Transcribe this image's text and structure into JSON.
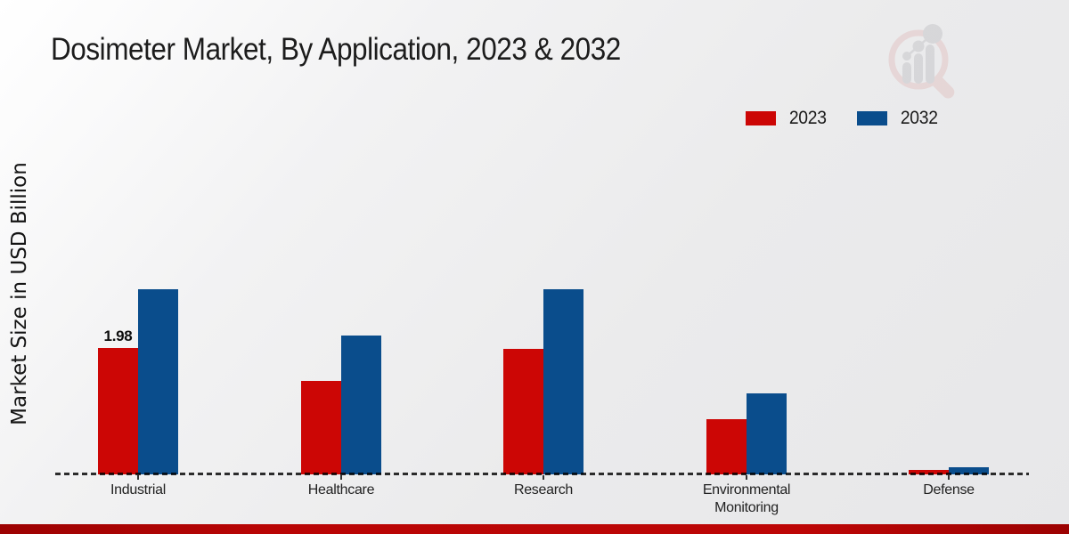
{
  "title": "Dosimeter Market, By Application, 2023 & 2032",
  "ylabel": "Market Size in USD Billion",
  "legend": [
    {
      "label": "2023",
      "color": "#cc0605"
    },
    {
      "label": "2032",
      "color": "#0a4d8c"
    }
  ],
  "chart_data": {
    "type": "bar",
    "title": "Dosimeter Market, By Application, 2023 & 2032",
    "ylabel": "Market Size in USD Billion",
    "xlabel": "",
    "categories": [
      "Industrial",
      "Healthcare",
      "Research",
      "Environmental Monitoring",
      "Defense"
    ],
    "series": [
      {
        "name": "2023",
        "color": "#cc0605",
        "values": [
          1.98,
          1.46,
          1.97,
          0.86,
          0.07
        ]
      },
      {
        "name": "2032",
        "color": "#0a4d8c",
        "values": [
          2.9,
          2.18,
          2.9,
          1.27,
          0.11
        ]
      }
    ],
    "ylim": [
      0,
      3.5
    ],
    "grid": false,
    "baseline_style": "dashed",
    "legend_position": "top-right",
    "bar_label": {
      "series": "2023",
      "category": "Industrial",
      "text": "1.98"
    }
  },
  "watermark_icon": "magnifier-bar-chart-logo-icon",
  "footer_bar_color": "#b90505"
}
